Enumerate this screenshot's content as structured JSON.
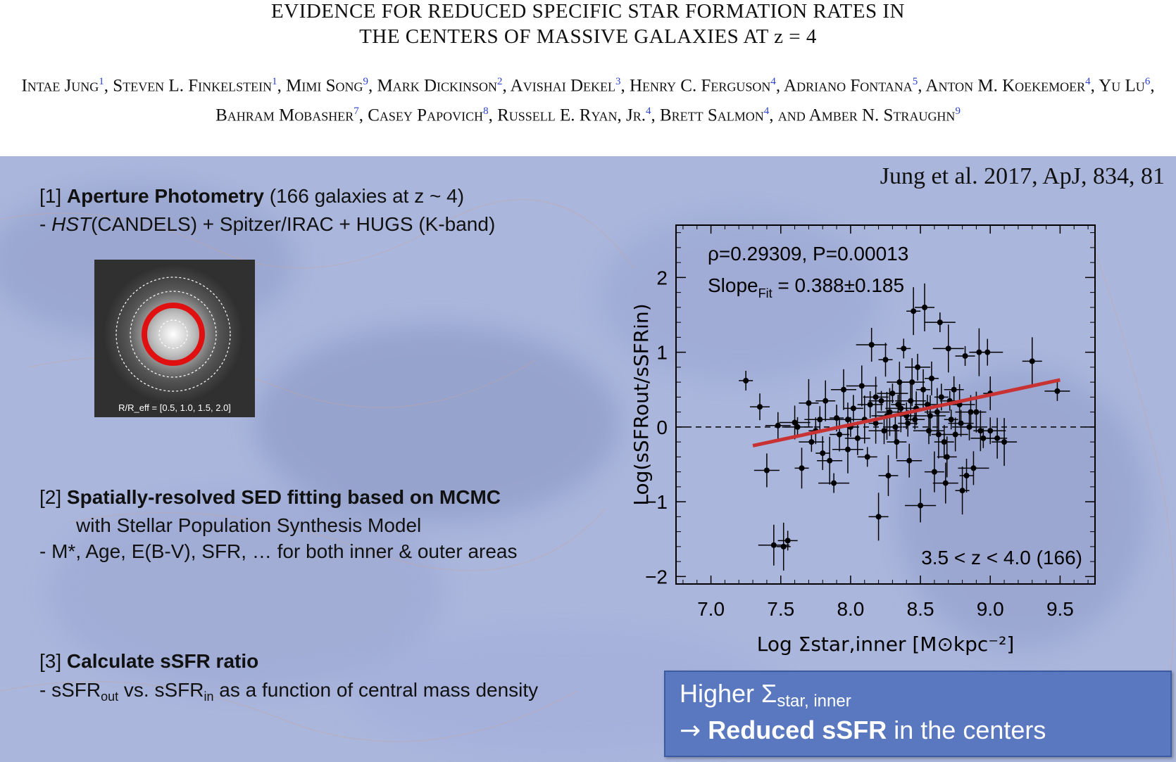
{
  "paper": {
    "title_line1": "EVIDENCE FOR REDUCED SPECIFIC STAR FORMATION RATES IN",
    "title_line2": "THE CENTERS OF MASSIVE GALAXIES AT z = 4",
    "authors": [
      {
        "name": "Intae Jung",
        "aff": "1"
      },
      {
        "name": "Steven L. Finkelstein",
        "aff": "1"
      },
      {
        "name": "Mimi Song",
        "aff": "9"
      },
      {
        "name": "Mark Dickinson",
        "aff": "2"
      },
      {
        "name": "Avishai Dekel",
        "aff": "3"
      },
      {
        "name": "Henry C. Ferguson",
        "aff": "4"
      },
      {
        "name": "Adriano Fontana",
        "aff": "5"
      },
      {
        "name": "Anton M. Koekemoer",
        "aff": "4"
      },
      {
        "name": "Yu Lu",
        "aff": "6"
      },
      {
        "name": "Bahram Mobasher",
        "aff": "7"
      },
      {
        "name": "Casey Papovich",
        "aff": "8"
      },
      {
        "name": "Russell E. Ryan, Jr.",
        "aff": "4"
      },
      {
        "name": "Brett Salmon",
        "aff": "4"
      },
      {
        "name": "Amber N. Straughn",
        "aff": "9"
      }
    ]
  },
  "slide": {
    "citation": "Jung et al. 2017, ApJ, 834, 81",
    "step1_num": "[1]",
    "step1_title": "Aperture Photometry",
    "step1_paren": "(166 galaxies at z ~ 4)",
    "step1_detail_italic": "HST",
    "step1_detail": "(CANDELS) + Spitzer/IRAC + HUGS (K-band)",
    "thumb_caption": "R/R_eff = [0.5, 1.0, 1.5, 2.0]",
    "step2_num": "[2]",
    "step2_title": "Spatially-resolved SED fitting based on MCMC",
    "step2_line2": "with Stellar Population Synthesis Model",
    "step2_line3": "- M*, Age, E(B-V), SFR, … for both inner & outer areas",
    "step3_num": "[3]",
    "step3_title": "Calculate sSFR ratio",
    "step3_line2_a": "- sSFR",
    "step3_line2_sub1": "out",
    "step3_line2_b": " vs. sSFR",
    "step3_line2_sub2": "in",
    "step3_line2_c": " as a function of central mass density",
    "callout_line1_a": "Higher Σ",
    "callout_line1_sub": "star, inner",
    "callout_arrow": "→",
    "callout_bold": "Reduced sSFR",
    "callout_line2_rest": " in the centers",
    "colors": {
      "callout_bg": "#5a78bf",
      "fit_line": "#c83232",
      "aperture_ring": "#e01010"
    }
  },
  "chart_data": {
    "type": "scatter",
    "annotation_rho": "ρ=0.29309, P=0.00013",
    "annotation_slope_a": "Slope",
    "annotation_slope_sub": "Fit",
    "annotation_slope_b": "= 0.388±0.185",
    "annotation_z": "3.5 < z < 4.0 (166)",
    "xlabel": "Log Σstar,inner [M⊙kpc⁻²]",
    "ylabel": "Log(sSFRout/sSFRin)",
    "xlim": [
      6.75,
      9.75
    ],
    "ylim": [
      -2.1,
      2.7
    ],
    "xticks": [
      "7.0",
      "7.5",
      "8.0",
      "8.5",
      "9.0",
      "9.5"
    ],
    "yticks": [
      "2",
      "1",
      "0",
      "−1",
      "−2"
    ],
    "fit_line": {
      "x": [
        7.3,
        9.5
      ],
      "y": [
        -0.25,
        0.63
      ]
    },
    "points": [
      {
        "x": 7.25,
        "y": 0.62
      },
      {
        "x": 7.35,
        "y": 0.27
      },
      {
        "x": 7.4,
        "y": -0.58
      },
      {
        "x": 7.45,
        "y": -1.58
      },
      {
        "x": 7.52,
        "y": -1.6
      },
      {
        "x": 7.55,
        "y": -1.52
      },
      {
        "x": 7.48,
        "y": 0.02
      },
      {
        "x": 7.6,
        "y": 0.06
      },
      {
        "x": 7.65,
        "y": -0.55
      },
      {
        "x": 7.7,
        "y": 0.32
      },
      {
        "x": 7.72,
        "y": -0.2
      },
      {
        "x": 7.78,
        "y": 0.1
      },
      {
        "x": 7.8,
        "y": -0.35
      },
      {
        "x": 7.82,
        "y": 0.35
      },
      {
        "x": 7.85,
        "y": -0.45
      },
      {
        "x": 7.88,
        "y": -0.75
      },
      {
        "x": 7.9,
        "y": 0.12
      },
      {
        "x": 7.92,
        "y": -0.1
      },
      {
        "x": 7.95,
        "y": 0.5
      },
      {
        "x": 7.98,
        "y": -0.3
      },
      {
        "x": 8.0,
        "y": 0.0
      },
      {
        "x": 8.02,
        "y": 0.25
      },
      {
        "x": 8.05,
        "y": -0.15
      },
      {
        "x": 8.08,
        "y": 0.55
      },
      {
        "x": 8.1,
        "y": 0.1
      },
      {
        "x": 8.12,
        "y": -0.4
      },
      {
        "x": 8.14,
        "y": 0.3
      },
      {
        "x": 8.15,
        "y": 1.1
      },
      {
        "x": 8.18,
        "y": 0.05
      },
      {
        "x": 8.2,
        "y": -1.2
      },
      {
        "x": 8.22,
        "y": 0.35
      },
      {
        "x": 8.24,
        "y": -0.05
      },
      {
        "x": 8.25,
        "y": 0.9
      },
      {
        "x": 8.27,
        "y": -0.65
      },
      {
        "x": 8.28,
        "y": 0.2
      },
      {
        "x": 8.3,
        "y": 0.45
      },
      {
        "x": 8.32,
        "y": 0.0
      },
      {
        "x": 8.33,
        "y": -0.2
      },
      {
        "x": 8.35,
        "y": 0.6
      },
      {
        "x": 8.36,
        "y": 0.25
      },
      {
        "x": 8.38,
        "y": 1.05
      },
      {
        "x": 8.4,
        "y": 0.15
      },
      {
        "x": 8.42,
        "y": -0.45
      },
      {
        "x": 8.43,
        "y": 0.35
      },
      {
        "x": 8.45,
        "y": 1.55
      },
      {
        "x": 8.46,
        "y": 0.1
      },
      {
        "x": 8.48,
        "y": 0.8
      },
      {
        "x": 8.5,
        "y": -1.05
      },
      {
        "x": 8.52,
        "y": 0.5
      },
      {
        "x": 8.53,
        "y": 1.6
      },
      {
        "x": 8.55,
        "y": 0.3
      },
      {
        "x": 8.56,
        "y": -0.05
      },
      {
        "x": 8.58,
        "y": 0.65
      },
      {
        "x": 8.6,
        "y": -0.6
      },
      {
        "x": 8.62,
        "y": 0.2
      },
      {
        "x": 8.64,
        "y": 1.4
      },
      {
        "x": 8.65,
        "y": 0.4
      },
      {
        "x": 8.67,
        "y": -0.2
      },
      {
        "x": 8.68,
        "y": -0.75
      },
      {
        "x": 8.7,
        "y": 1.05
      },
      {
        "x": 8.72,
        "y": 0.1
      },
      {
        "x": 8.74,
        "y": 0.5
      },
      {
        "x": 8.75,
        "y": -0.1
      },
      {
        "x": 8.78,
        "y": 0.3
      },
      {
        "x": 8.8,
        "y": -0.85
      },
      {
        "x": 8.82,
        "y": 0.95
      },
      {
        "x": 8.85,
        "y": 0.0
      },
      {
        "x": 8.88,
        "y": -0.55
      },
      {
        "x": 8.9,
        "y": 0.2
      },
      {
        "x": 8.92,
        "y": 1.0
      },
      {
        "x": 8.95,
        "y": -0.15
      },
      {
        "x": 8.98,
        "y": 1.0
      },
      {
        "x": 9.0,
        "y": 0.45
      },
      {
        "x": 9.05,
        "y": -0.15
      },
      {
        "x": 9.1,
        "y": -0.2
      },
      {
        "x": 7.62,
        "y": 0.0
      },
      {
        "x": 7.75,
        "y": -0.05
      },
      {
        "x": 7.98,
        "y": 0.1
      },
      {
        "x": 8.18,
        "y": 0.4
      },
      {
        "x": 8.26,
        "y": 0.15
      },
      {
        "x": 8.34,
        "y": 0.3
      },
      {
        "x": 8.41,
        "y": 0.05
      },
      {
        "x": 8.47,
        "y": 0.25
      },
      {
        "x": 8.57,
        "y": 0.15
      },
      {
        "x": 8.63,
        "y": -0.1
      },
      {
        "x": 8.71,
        "y": 0.35
      },
      {
        "x": 8.79,
        "y": 0.05
      },
      {
        "x": 8.86,
        "y": 0.2
      },
      {
        "x": 8.93,
        "y": -0.05
      },
      {
        "x": 9.3,
        "y": 0.88
      },
      {
        "x": 9.48,
        "y": 0.48
      },
      {
        "x": 9.0,
        "y": -0.05
      },
      {
        "x": 8.83,
        "y": -0.65
      },
      {
        "x": 8.69,
        "y": -0.4
      },
      {
        "x": 8.44,
        "y": 0.6
      }
    ]
  }
}
